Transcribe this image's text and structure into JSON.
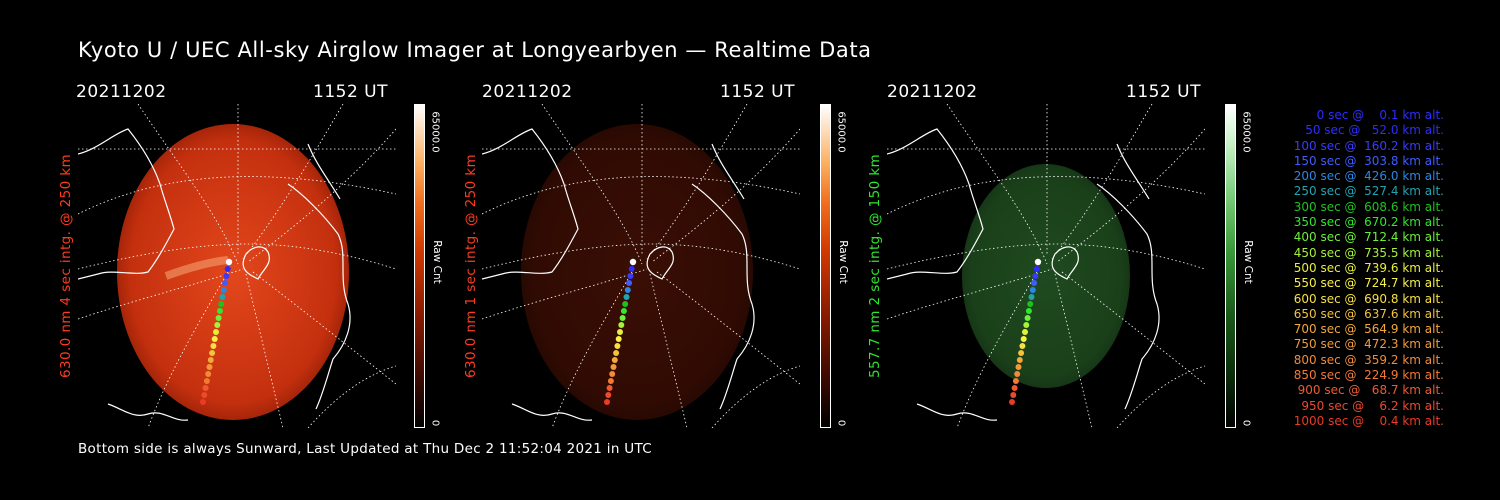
{
  "title": "Kyoto U / UEC All-sky Airglow Imager at Longyearbyen — Realtime Data",
  "footer": "Bottom side is always Sunward, Last Updated at Thu Dec  2 11:52:04 2021 in UTC",
  "colors": {
    "red_label": "#ff3b1f",
    "green_label": "#2ee82e",
    "background": "#000000"
  },
  "panels": [
    {
      "date": "20211202",
      "time": "1152 UT",
      "ylabel": "630.0 nm  4 sec intg. @ 250 km",
      "label_color": "#ff3b1f",
      "cbar_max": "65000.0",
      "cbar_min": "0",
      "cbar_unit": "Raw Cnt",
      "glow": "red-bright",
      "relative_intensity": 0.8
    },
    {
      "date": "20211202",
      "time": "1152 UT",
      "ylabel": "630.0 nm  1 sec intg. @ 250 km",
      "label_color": "#ff3b1f",
      "cbar_max": "65000.0",
      "cbar_min": "0",
      "cbar_unit": "Raw Cnt",
      "glow": "red-dim",
      "relative_intensity": 0.2
    },
    {
      "date": "20211202",
      "time": "1152 UT",
      "ylabel": "557.7 nm  2 sec intg. @ 150 km",
      "label_color": "#2ee82e",
      "cbar_max": "65000.0",
      "cbar_min": "0",
      "cbar_unit": "Raw Cnt",
      "glow": "green",
      "relative_intensity": 0.25
    }
  ],
  "legend": [
    {
      "text": "   0 sec @    0.1 km alt.",
      "color": "#2d2dff"
    },
    {
      "text": "  50 sec @   52.0 km alt.",
      "color": "#2d2dff"
    },
    {
      "text": " 100 sec @  160.2 km alt.",
      "color": "#3a3aff"
    },
    {
      "text": " 150 sec @  303.8 km alt.",
      "color": "#3f5cff"
    },
    {
      "text": " 200 sec @  426.0 km alt.",
      "color": "#2b86e6"
    },
    {
      "text": " 250 sec @  527.4 km alt.",
      "color": "#22a3b0"
    },
    {
      "text": " 300 sec @  608.6 km alt.",
      "color": "#20c020"
    },
    {
      "text": " 350 sec @  670.2 km alt.",
      "color": "#2ee82e"
    },
    {
      "text": " 400 sec @  712.4 km alt.",
      "color": "#6cf03a"
    },
    {
      "text": " 450 sec @  735.5 km alt.",
      "color": "#a6f23a"
    },
    {
      "text": " 500 sec @  739.6 km alt.",
      "color": "#e6f03a"
    },
    {
      "text": " 550 sec @  724.7 km alt.",
      "color": "#f7f046"
    },
    {
      "text": " 600 sec @  690.8 km alt.",
      "color": "#f7e040"
    },
    {
      "text": " 650 sec @  637.6 km alt.",
      "color": "#f2c23a"
    },
    {
      "text": " 700 sec @  564.9 km alt.",
      "color": "#f2a83a"
    },
    {
      "text": " 750 sec @  472.3 km alt.",
      "color": "#f29a3a"
    },
    {
      "text": " 800 sec @  359.2 km alt.",
      "color": "#f28a3a"
    },
    {
      "text": " 850 sec @  224.9 km alt.",
      "color": "#f07a36"
    },
    {
      "text": " 900 sec @   68.7 km alt.",
      "color": "#ee5a30"
    },
    {
      "text": " 950 sec @    6.2 km alt.",
      "color": "#ec4a2c"
    },
    {
      "text": "1000 sec @    0.4 km alt.",
      "color": "#ea3a28"
    }
  ]
}
